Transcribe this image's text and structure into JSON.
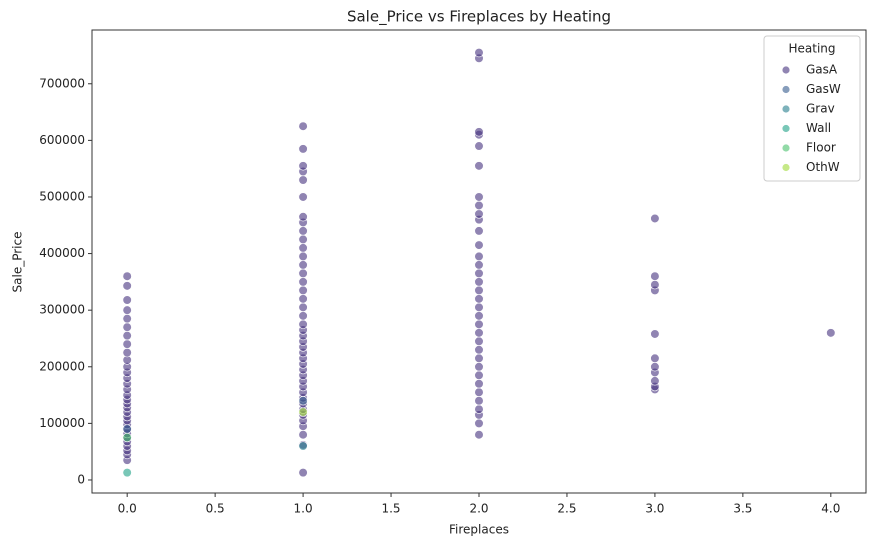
{
  "chart_data": {
    "type": "scatter",
    "title": "Sale_Price vs Fireplaces by Heating",
    "x_label": "Fireplaces",
    "y_label": "Sale_Price",
    "xlim": [
      -0.2,
      4.2
    ],
    "ylim": [
      -23000,
      795000
    ],
    "xticks": [
      {
        "value": 0,
        "label": "0.0"
      },
      0.5,
      {
        "value": 1,
        "label": "1.0"
      },
      1.5,
      {
        "value": 2,
        "label": "2.0"
      },
      2.5,
      {
        "value": 3,
        "label": "3.0"
      },
      3.5,
      {
        "value": 4,
        "label": "4.0"
      }
    ],
    "yticks": [
      0,
      100000,
      200000,
      300000,
      400000,
      500000,
      600000,
      700000
    ],
    "legend_title": "Heating",
    "legend_position": "upper right",
    "series": [
      {
        "name": "GasA",
        "color": "#46327e",
        "x": [
          0,
          0,
          0,
          0,
          0,
          0,
          0,
          0,
          0,
          0,
          0,
          0,
          0,
          0,
          0,
          0,
          0,
          0,
          0,
          0,
          0,
          0,
          0,
          0,
          0,
          0,
          0,
          0,
          0,
          0,
          0,
          1,
          1,
          1,
          1,
          1,
          1,
          1,
          1,
          1,
          1,
          1,
          1,
          1,
          1,
          1,
          1,
          1,
          1,
          1,
          1,
          1,
          1,
          1,
          1,
          1,
          1,
          1,
          1,
          1,
          1,
          1,
          1,
          1,
          1,
          1,
          1,
          1,
          1,
          1,
          1,
          1,
          2,
          2,
          2,
          2,
          2,
          2,
          2,
          2,
          2,
          2,
          2,
          2,
          2,
          2,
          2,
          2,
          2,
          2,
          2,
          2,
          2,
          2,
          2,
          2,
          2,
          2,
          2,
          2,
          2,
          2,
          2,
          2,
          2,
          2,
          3,
          3,
          3,
          3,
          3,
          3,
          3,
          3,
          3,
          3,
          3,
          4
        ],
        "values": [
          35000,
          45000,
          52000,
          60000,
          68000,
          75000,
          82000,
          90000,
          98000,
          105000,
          112000,
          120000,
          128000,
          135000,
          142000,
          150000,
          160000,
          170000,
          180000,
          190000,
          200000,
          212000,
          225000,
          240000,
          255000,
          270000,
          285000,
          300000,
          318000,
          343000,
          360000,
          13000,
          62000,
          80000,
          95000,
          105000,
          115000,
          125000,
          135000,
          145000,
          155000,
          165000,
          175000,
          185000,
          195000,
          205000,
          215000,
          225000,
          235000,
          245000,
          255000,
          265000,
          275000,
          290000,
          305000,
          320000,
          335000,
          350000,
          365000,
          380000,
          395000,
          410000,
          425000,
          440000,
          455000,
          465000,
          500000,
          530000,
          545000,
          555000,
          585000,
          625000,
          80000,
          100000,
          115000,
          125000,
          140000,
          155000,
          170000,
          185000,
          200000,
          215000,
          230000,
          245000,
          260000,
          275000,
          290000,
          305000,
          320000,
          335000,
          350000,
          365000,
          380000,
          395000,
          415000,
          440000,
          460000,
          470000,
          485000,
          500000,
          555000,
          590000,
          610000,
          615000,
          745000,
          755000,
          160000,
          165000,
          175000,
          190000,
          200000,
          215000,
          258000,
          335000,
          345000,
          360000,
          462000,
          260000
        ]
      },
      {
        "name": "GasW",
        "color": "#365c8d",
        "x": [
          0,
          1
        ],
        "values": [
          90000,
          140000
        ]
      },
      {
        "name": "Grav",
        "color": "#277f8e",
        "x": [
          1
        ],
        "values": [
          60000
        ]
      },
      {
        "name": "Wall",
        "color": "#1fa187",
        "x": [
          0
        ],
        "values": [
          13000
        ]
      },
      {
        "name": "Floor",
        "color": "#4ac16d",
        "x": [
          0
        ],
        "values": [
          75000
        ]
      },
      {
        "name": "OthW",
        "color": "#a0da39",
        "x": [
          1
        ],
        "values": [
          120000
        ]
      }
    ]
  }
}
